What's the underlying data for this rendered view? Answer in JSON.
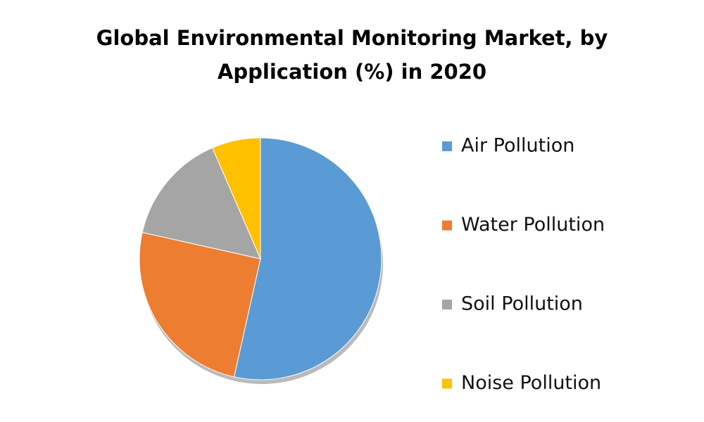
{
  "chart_data": {
    "type": "pie",
    "title": "Global Environmental Monitoring Market, by Application (%) in 2020",
    "categories": [
      "Air Pollution",
      "Water Pollution",
      "Soil Pollution",
      "Noise Pollution"
    ],
    "values": [
      53.5,
      25,
      15,
      6.5
    ],
    "colors": [
      "#5b9bd5",
      "#ed7d31",
      "#a5a5a5",
      "#ffc000"
    ],
    "legend": "right"
  }
}
